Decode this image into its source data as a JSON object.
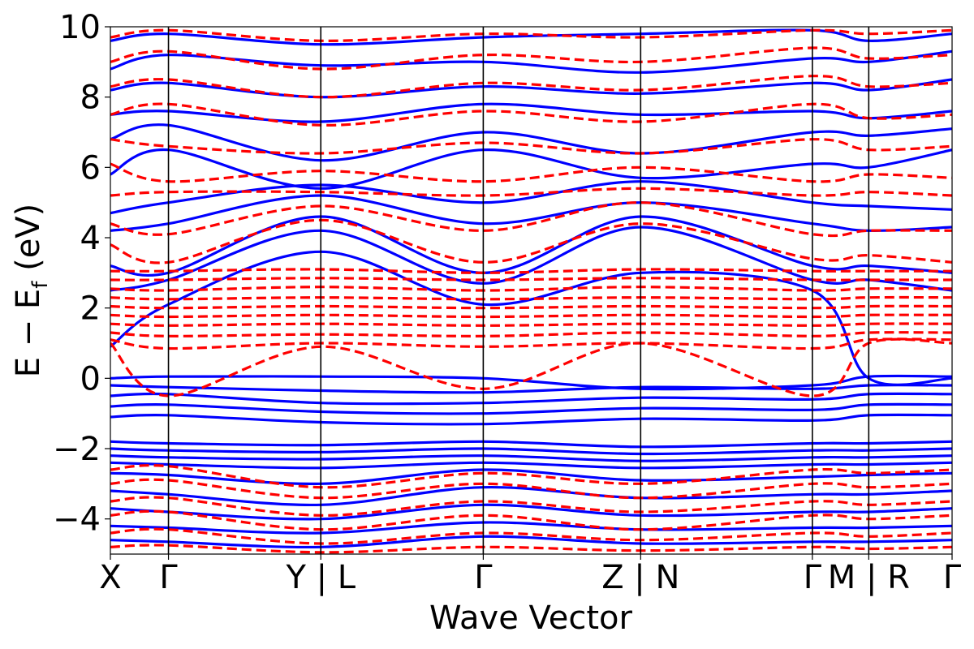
{
  "chart_data": {
    "type": "line",
    "title": "",
    "xlabel": "Wave Vector",
    "ylabel_main": "E − E",
    "ylabel_sub": "f",
    "ylabel_unit": " (eV)",
    "ylim": [
      -5,
      10
    ],
    "yticks": [
      -4,
      -2,
      0,
      2,
      4,
      6,
      8,
      10
    ],
    "ytick_labels": [
      "−4",
      "−2",
      "0",
      "2",
      "4",
      "6",
      "8",
      "10"
    ],
    "kpoint_labels": [
      "X",
      "Γ",
      "Y | L",
      "Γ",
      "Z | N",
      "Γ",
      "M | R",
      "Γ"
    ],
    "kpoint_positions": [
      0,
      0.069,
      0.25,
      0.443,
      0.63,
      0.834,
      0.901,
      1.0
    ],
    "grid": false,
    "legend": "none",
    "colors": {
      "series_a": "#0000ff",
      "series_b": "#ff0000",
      "vlines": "#000000"
    },
    "series": [
      {
        "style": "solid",
        "color": "#0000ff",
        "bands": [
          [
            0.9,
            2.1,
            3.6,
            2.1,
            3.0,
            2.5,
            0.0,
            0.0
          ],
          [
            0.0,
            0.05,
            0.05,
            0.0,
            -0.3,
            -0.2,
            0.05,
            0.05
          ],
          [
            -0.2,
            -0.25,
            -0.35,
            -0.4,
            -0.25,
            -0.3,
            -0.2,
            -0.2
          ],
          [
            -0.5,
            -0.45,
            -0.7,
            -0.7,
            -0.55,
            -0.6,
            -0.45,
            -0.45
          ],
          [
            -0.8,
            -0.75,
            -0.95,
            -1.0,
            -0.85,
            -0.9,
            -0.75,
            -0.75
          ],
          [
            -1.1,
            -1.05,
            -1.25,
            -1.3,
            -1.15,
            -1.2,
            -1.05,
            -1.05
          ],
          [
            -1.8,
            -1.85,
            -1.9,
            -1.8,
            -1.95,
            -1.85,
            -1.85,
            -1.8
          ],
          [
            -2.0,
            -2.05,
            -2.1,
            -2.0,
            -2.15,
            -2.05,
            -2.05,
            -2.0
          ],
          [
            -2.2,
            -2.25,
            -2.3,
            -2.2,
            -2.35,
            -2.25,
            -2.25,
            -2.2
          ],
          [
            -2.4,
            -2.45,
            -2.55,
            -2.4,
            -2.55,
            -2.45,
            -2.45,
            -2.4
          ],
          [
            -2.7,
            -2.75,
            -3.0,
            -2.6,
            -2.9,
            -2.8,
            -2.75,
            -2.7
          ],
          [
            -3.2,
            -3.3,
            -3.6,
            -3.1,
            -3.4,
            -3.3,
            -3.3,
            -3.2
          ],
          [
            -3.7,
            -3.8,
            -4.0,
            -3.6,
            -3.9,
            -3.8,
            -3.8,
            -3.7
          ],
          [
            -4.2,
            -4.25,
            -4.4,
            -4.1,
            -4.3,
            -4.25,
            -4.25,
            -4.2
          ],
          [
            -4.6,
            -4.65,
            -4.8,
            -4.5,
            -4.7,
            -4.65,
            -4.65,
            -4.6
          ],
          [
            2.5,
            2.8,
            4.2,
            2.7,
            4.3,
            2.8,
            2.8,
            2.5
          ],
          [
            3.2,
            3.0,
            4.6,
            3.0,
            4.6,
            3.2,
            3.2,
            3.0
          ],
          [
            4.2,
            4.4,
            5.2,
            4.4,
            5.0,
            4.4,
            4.2,
            4.3
          ],
          [
            4.7,
            5.0,
            5.5,
            5.0,
            5.6,
            5.0,
            4.9,
            4.8
          ],
          [
            5.8,
            6.5,
            5.4,
            6.5,
            5.7,
            6.1,
            6.0,
            6.5
          ],
          [
            6.8,
            7.2,
            6.2,
            7.0,
            6.4,
            7.0,
            6.9,
            7.1
          ],
          [
            7.5,
            7.6,
            7.3,
            7.8,
            7.5,
            7.6,
            7.4,
            7.6
          ],
          [
            8.2,
            8.4,
            8.0,
            8.3,
            8.1,
            8.4,
            8.2,
            8.5
          ],
          [
            8.8,
            9.2,
            8.9,
            9.0,
            8.7,
            9.1,
            9.0,
            9.3
          ],
          [
            9.6,
            9.8,
            9.5,
            9.7,
            9.8,
            9.9,
            9.6,
            9.8
          ]
        ]
      },
      {
        "style": "dashed",
        "color": "#ff0000",
        "bands": [
          [
            1.0,
            -0.5,
            0.9,
            -0.3,
            1.0,
            -0.5,
            1.0,
            1.0
          ],
          [
            1.1,
            0.85,
            1.0,
            0.9,
            1.0,
            0.85,
            1.1,
            1.1
          ],
          [
            1.3,
            1.2,
            1.25,
            1.2,
            1.3,
            1.2,
            1.3,
            1.3
          ],
          [
            1.55,
            1.5,
            1.55,
            1.5,
            1.55,
            1.5,
            1.55,
            1.55
          ],
          [
            1.8,
            1.75,
            1.8,
            1.75,
            1.8,
            1.75,
            1.8,
            1.8
          ],
          [
            2.05,
            2.0,
            2.05,
            2.0,
            2.05,
            2.0,
            2.05,
            2.05
          ],
          [
            2.3,
            2.25,
            2.3,
            2.25,
            2.3,
            2.25,
            2.3,
            2.3
          ],
          [
            2.55,
            2.5,
            2.6,
            2.5,
            2.6,
            2.5,
            2.55,
            2.55
          ],
          [
            2.8,
            2.8,
            2.85,
            2.8,
            2.85,
            2.8,
            2.8,
            2.8
          ],
          [
            3.05,
            3.05,
            3.1,
            3.0,
            3.1,
            3.05,
            3.05,
            3.05
          ],
          [
            -2.6,
            -2.5,
            -3.1,
            -2.7,
            -3.0,
            -2.6,
            -2.7,
            -2.6
          ],
          [
            -3.0,
            -2.9,
            -3.4,
            -3.0,
            -3.4,
            -3.0,
            -3.1,
            -3.0
          ],
          [
            -3.5,
            -3.4,
            -3.9,
            -3.5,
            -3.8,
            -3.5,
            -3.6,
            -3.5
          ],
          [
            -3.9,
            -3.8,
            -4.3,
            -3.9,
            -4.3,
            -3.9,
            -4.0,
            -3.9
          ],
          [
            -4.4,
            -4.3,
            -4.7,
            -4.4,
            -4.6,
            -4.4,
            -4.5,
            -4.4
          ],
          [
            -4.8,
            -4.75,
            -4.95,
            -4.8,
            -4.9,
            -4.8,
            -4.85,
            -4.8
          ],
          [
            3.8,
            3.3,
            4.5,
            3.3,
            4.4,
            3.4,
            3.5,
            3.3
          ],
          [
            4.4,
            4.1,
            4.9,
            4.2,
            5.0,
            4.1,
            4.2,
            4.2
          ],
          [
            5.2,
            5.3,
            5.3,
            5.2,
            5.4,
            5.2,
            5.3,
            5.2
          ],
          [
            6.1,
            5.6,
            5.9,
            5.6,
            6.0,
            5.6,
            5.8,
            5.7
          ],
          [
            6.8,
            6.6,
            6.4,
            6.7,
            6.4,
            6.8,
            6.5,
            6.6
          ],
          [
            7.5,
            7.8,
            7.2,
            7.6,
            7.3,
            7.8,
            7.4,
            7.5
          ],
          [
            8.3,
            8.5,
            8.0,
            8.4,
            8.2,
            8.6,
            8.3,
            8.4
          ],
          [
            9.0,
            9.3,
            8.8,
            9.2,
            9.0,
            9.4,
            9.1,
            9.2
          ],
          [
            9.7,
            9.9,
            9.6,
            9.8,
            9.7,
            9.9,
            9.8,
            9.9
          ]
        ]
      }
    ]
  }
}
